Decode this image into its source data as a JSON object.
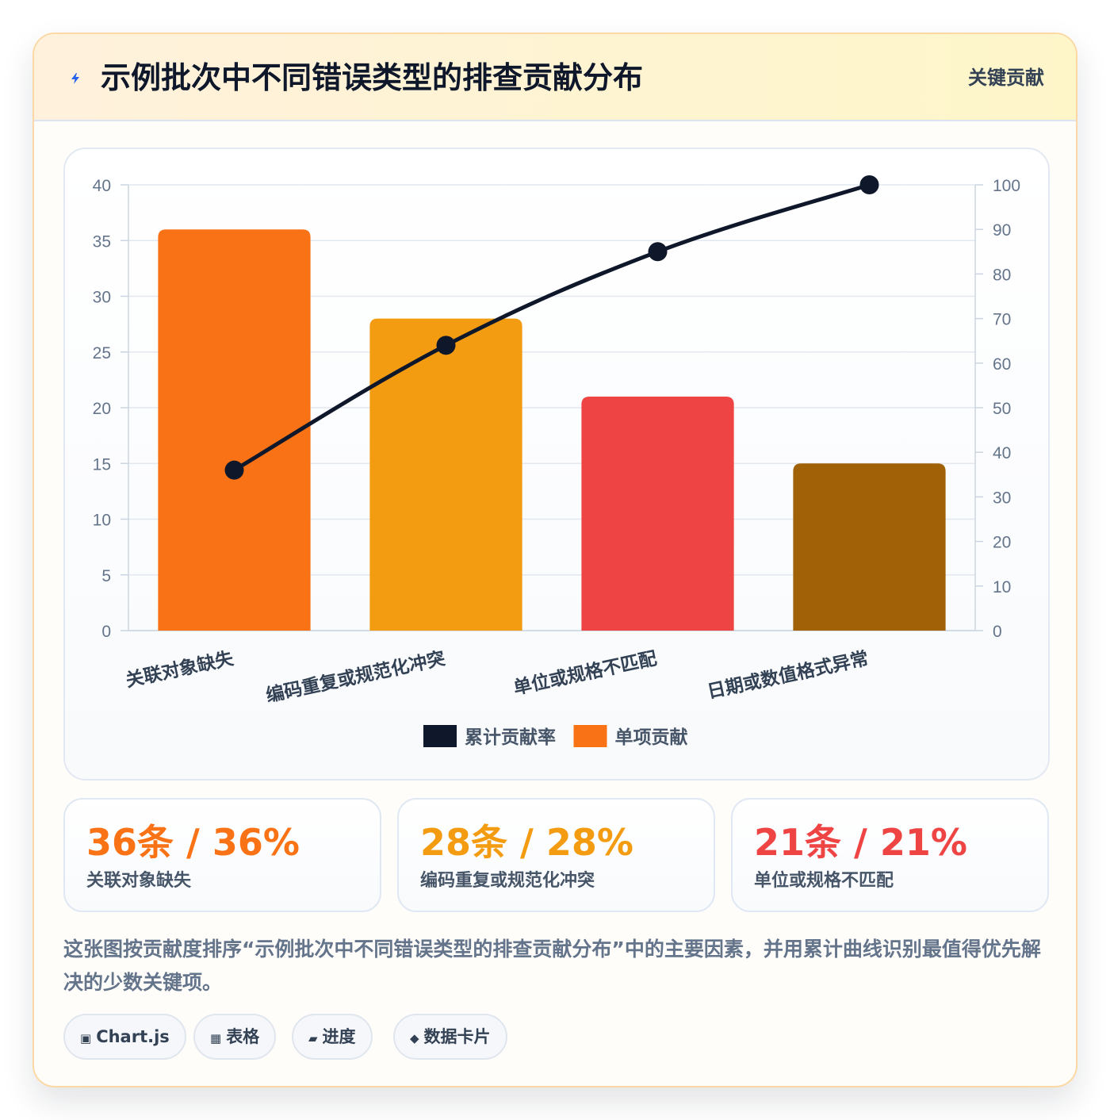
{
  "header": {
    "icon": "lightning-bolt-icon",
    "title": "示例批次中不同错误类型的排查贡献分布",
    "tag": "关键贡献"
  },
  "chart_data": {
    "type": "bar",
    "categories": [
      "关联对象缺失",
      "编码重复或规范化冲突",
      "单位或规格不匹配",
      "日期或数值格式异常"
    ],
    "series": [
      {
        "name": "单项贡献",
        "type": "bar",
        "axis": "left",
        "values": [
          36,
          28,
          21,
          15
        ],
        "colors": [
          "#f97316",
          "#f39c12",
          "#ef4444",
          "#a16207"
        ]
      },
      {
        "name": "累计贡献率",
        "type": "line",
        "axis": "right",
        "values": [
          36,
          64,
          85,
          100
        ],
        "color": "#0f172a"
      }
    ],
    "y_left": {
      "ticks": [
        0,
        5,
        10,
        15,
        20,
        25,
        30,
        35,
        40
      ],
      "range": [
        0,
        40
      ]
    },
    "y_right": {
      "ticks": [
        0,
        10,
        20,
        30,
        40,
        50,
        60,
        70,
        80,
        90,
        100
      ],
      "range": [
        0,
        100
      ]
    },
    "legend": [
      {
        "label": "累计贡献率",
        "color": "#0f172a"
      },
      {
        "label": "单项贡献",
        "color": "#f97316"
      }
    ],
    "legend_position": "bottom",
    "grid": true
  },
  "stats": [
    {
      "value": "36条 / 36%",
      "label": "关联对象缺失",
      "color": "#f97316"
    },
    {
      "value": "28条 / 28%",
      "label": "编码重复或规范化冲突",
      "color": "#f39c12"
    },
    {
      "value": "21条 / 21%",
      "label": "单位或规格不匹配",
      "color": "#ef4444"
    }
  ],
  "description": "这张图按贡献度排序“示例批次中不同错误类型的排查贡献分布”中的主要因素，并用累计曲线识别最值得优先解决的少数关键项。",
  "chips": [
    {
      "icon": "▣",
      "label": "Chart.js"
    },
    {
      "icon": "▦",
      "label": "表格"
    },
    {
      "icon": "▰",
      "label": "进度"
    },
    {
      "icon": "◆",
      "label": "数据卡片"
    }
  ]
}
